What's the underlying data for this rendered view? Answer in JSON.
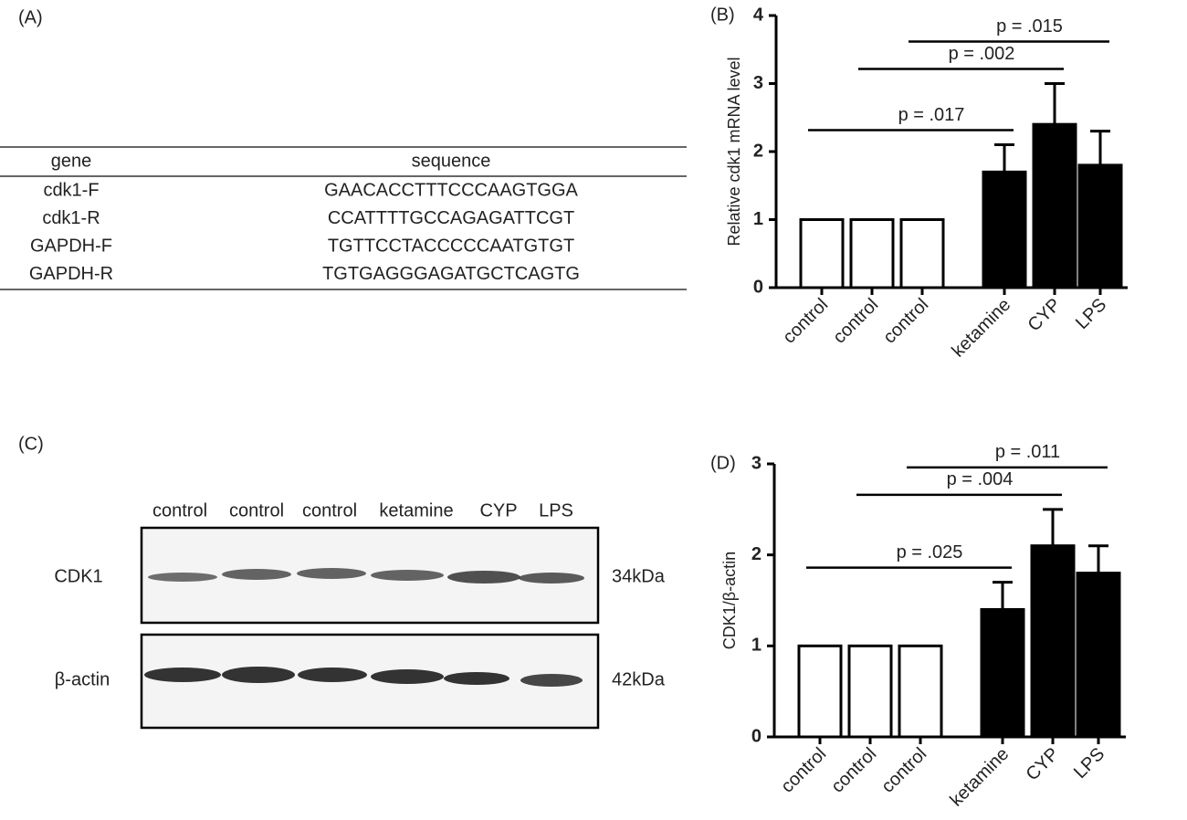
{
  "panel_a": {
    "label": "(A)",
    "table": {
      "headers": [
        "gene",
        "sequence"
      ],
      "rows": [
        [
          "cdk1-F",
          "GAACACCTTTCCCAAGTGGA"
        ],
        [
          "cdk1-R",
          "CCATTTTGCCAGAGATTCGT"
        ],
        [
          "GAPDH-F",
          "TGTTCCTACCCCCAATGTGT"
        ],
        [
          "GAPDH-R",
          "TGTGAGGGAGATGCTCAGTG"
        ]
      ]
    }
  },
  "panel_c": {
    "label": "(C)",
    "lanes": [
      "control",
      "control",
      "control",
      "ketamine",
      "CYP",
      "LPS"
    ],
    "blots": [
      {
        "protein": "CDK1",
        "size": "34kDa"
      },
      {
        "protein": "β-actin",
        "size": "42kDa"
      }
    ]
  },
  "chart_data": [
    {
      "type": "bar",
      "panel_label": "(B)",
      "y_label": "Relative cdk1 mRNA level",
      "categories": [
        "control",
        "control",
        "control",
        "ketamine",
        "CYP",
        "LPS"
      ],
      "values": [
        1,
        1,
        1,
        1.7,
        2.4,
        1.8
      ],
      "errors": [
        0,
        0,
        0,
        0.4,
        0.6,
        0.5
      ],
      "colors": [
        "#ffffff",
        "#ffffff",
        "#ffffff",
        "#000000",
        "#000000",
        "#000000"
      ],
      "ylim": [
        0,
        4
      ],
      "yticks": [
        0,
        1,
        2,
        3,
        4
      ],
      "annotations": [
        "p = .017",
        "p = .002",
        "p = .015"
      ]
    },
    {
      "type": "bar",
      "panel_label": "(D)",
      "y_label": "CDK1/β-actin",
      "categories": [
        "control",
        "control",
        "control",
        "ketamine",
        "CYP",
        "LPS"
      ],
      "values": [
        1,
        1,
        1,
        1.4,
        2.1,
        1.8
      ],
      "errors": [
        0,
        0,
        0,
        0.3,
        0.4,
        0.3
      ],
      "colors": [
        "#ffffff",
        "#ffffff",
        "#ffffff",
        "#000000",
        "#000000",
        "#000000"
      ],
      "ylim": [
        0,
        3
      ],
      "yticks": [
        0,
        1,
        2,
        3
      ],
      "annotations": [
        "p = .025",
        "p = .004",
        "p = .011"
      ]
    }
  ]
}
